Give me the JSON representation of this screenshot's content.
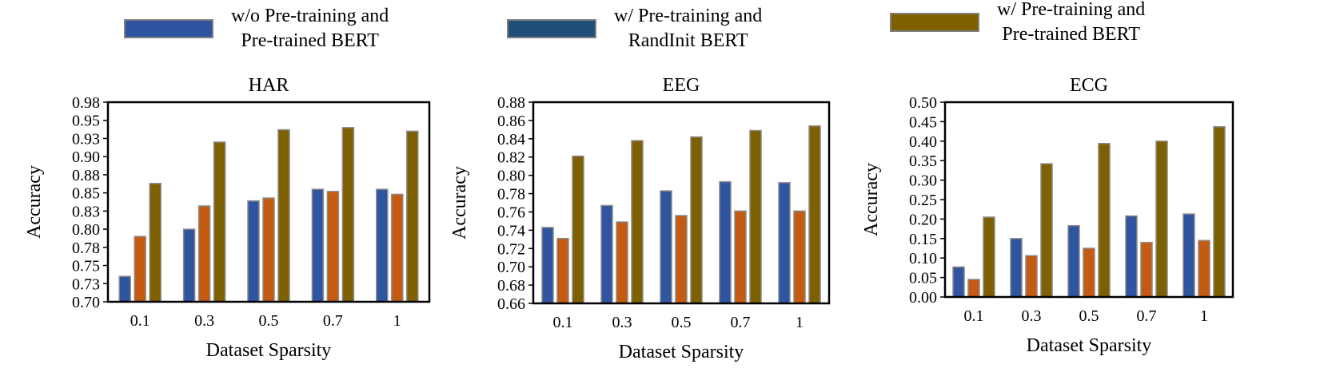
{
  "legend": [
    {
      "label": "w/o Pre-training and\nPre-trained BERT",
      "color": "#2f54a0"
    },
    {
      "label": "w/ Pre-training and\nRandInit BERT",
      "color": "#1f4e79"
    },
    {
      "label": "w/ Pre-training and\nPre-trained BERT",
      "color": "#7f6000"
    }
  ],
  "series_colors": [
    "#2f54a0",
    "#c55a11",
    "#7f6000"
  ],
  "chart_data": [
    {
      "type": "bar",
      "title": "HAR",
      "xlabel": "Dataset Sparsity",
      "ylabel": "Accuracy",
      "categories": [
        "0.1",
        "0.3",
        "0.5",
        "0.7",
        "1"
      ],
      "yticks": [
        "0.70",
        "0.73",
        "0.75",
        "0.78",
        "0.80",
        "0.83",
        "0.85",
        "0.88",
        "0.90",
        "0.93",
        "0.95",
        "0.98"
      ],
      "ylim": [
        0.7,
        0.975
      ],
      "series": [
        {
          "values": [
            0.735,
            0.8,
            0.839,
            0.855,
            0.855
          ]
        },
        {
          "values": [
            0.79,
            0.832,
            0.843,
            0.852,
            0.848
          ]
        },
        {
          "values": [
            0.863,
            0.92,
            0.937,
            0.94,
            0.935
          ]
        }
      ]
    },
    {
      "type": "bar",
      "title": "EEG",
      "xlabel": "Dataset Sparsity",
      "ylabel": "Accuracy",
      "categories": [
        "0.1",
        "0.3",
        "0.5",
        "0.7",
        "1"
      ],
      "yticks": [
        "0.66",
        "0.68",
        "0.70",
        "0.72",
        "0.74",
        "0.76",
        "0.78",
        "0.80",
        "0.82",
        "0.84",
        "0.86",
        "0.88"
      ],
      "ylim": [
        0.66,
        0.88
      ],
      "series": [
        {
          "values": [
            0.743,
            0.767,
            0.783,
            0.793,
            0.792
          ]
        },
        {
          "values": [
            0.731,
            0.749,
            0.756,
            0.761,
            0.761
          ]
        },
        {
          "values": [
            0.821,
            0.838,
            0.842,
            0.849,
            0.854
          ]
        }
      ]
    },
    {
      "type": "bar",
      "title": "ECG",
      "xlabel": "Dataset Sparsity",
      "ylabel": "Accuracy",
      "categories": [
        "0.1",
        "0.3",
        "0.5",
        "0.7",
        "1"
      ],
      "yticks": [
        "0.00",
        "0.05",
        "0.10",
        "0.15",
        "0.20",
        "0.25",
        "0.30",
        "0.35",
        "0.40",
        "0.45",
        "0.50"
      ],
      "ylim": [
        0.0,
        0.5
      ],
      "series": [
        {
          "values": [
            0.077,
            0.15,
            0.183,
            0.208,
            0.213
          ]
        },
        {
          "values": [
            0.045,
            0.106,
            0.125,
            0.14,
            0.145
          ]
        },
        {
          "values": [
            0.205,
            0.342,
            0.394,
            0.4,
            0.437
          ]
        }
      ]
    }
  ]
}
